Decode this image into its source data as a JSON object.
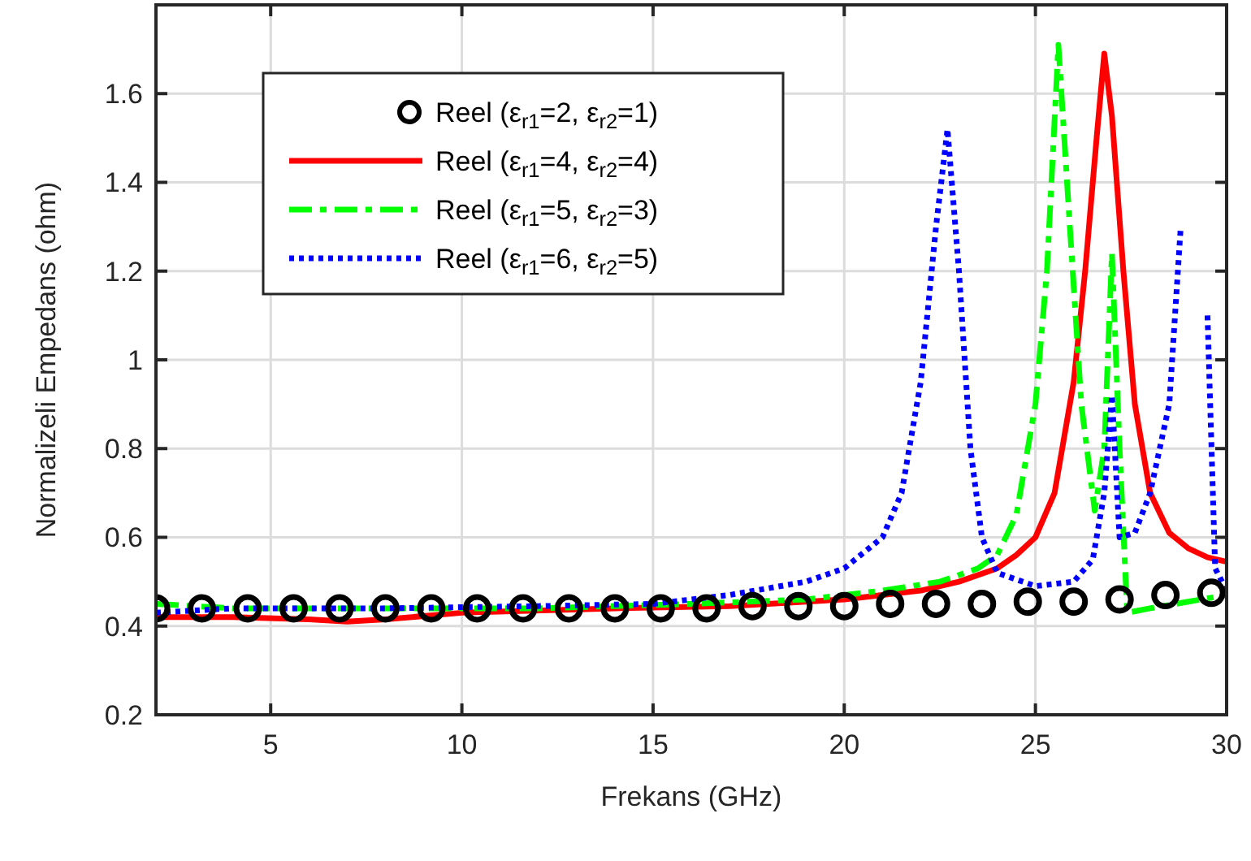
{
  "chart_data": {
    "type": "line",
    "xlabel": "Frekans (GHz)",
    "ylabel": "Normalizeli Empedans (ohm)",
    "xlim": [
      2,
      30
    ],
    "ylim": [
      0.2,
      1.8
    ],
    "xticks": [
      5,
      10,
      15,
      20,
      25,
      30
    ],
    "yticks": [
      0.2,
      0.4,
      0.6,
      0.8,
      1,
      1.2,
      1.4,
      1.6
    ],
    "grid": true,
    "legend": "top left",
    "series": [
      {
        "name": "Reel (ε$_{r1}$=2, ε$_{r2}$=1)",
        "type": "scatter",
        "marker": "circle",
        "color": "#000000",
        "x": [
          2,
          3.2,
          4.4,
          5.6,
          6.8,
          8,
          9.2,
          10.4,
          11.6,
          12.8,
          14,
          15.2,
          16.4,
          17.6,
          18.8,
          20,
          21.2,
          22.4,
          23.6,
          24.8,
          26,
          27.2,
          28.4,
          29.6
        ],
        "values": [
          0.44,
          0.44,
          0.44,
          0.44,
          0.44,
          0.44,
          0.44,
          0.44,
          0.44,
          0.44,
          0.44,
          0.44,
          0.44,
          0.445,
          0.445,
          0.445,
          0.45,
          0.45,
          0.45,
          0.455,
          0.455,
          0.46,
          0.47,
          0.475
        ]
      },
      {
        "name": "Reel (ε$_{r1}$=4, ε$_{r2}$=4)",
        "line_style": "solid",
        "color": "#ff0000",
        "x": [
          2,
          4,
          6,
          7,
          8,
          10,
          14,
          17,
          20,
          22,
          23,
          24,
          24.5,
          25,
          25.5,
          26,
          26.3,
          26.6,
          26.8,
          27,
          27.3,
          27.6,
          28,
          28.5,
          29,
          29.5,
          30
        ],
        "values": [
          0.42,
          0.42,
          0.415,
          0.41,
          0.415,
          0.43,
          0.44,
          0.445,
          0.46,
          0.48,
          0.5,
          0.53,
          0.56,
          0.6,
          0.7,
          0.95,
          1.2,
          1.5,
          1.69,
          1.55,
          1.2,
          0.9,
          0.7,
          0.61,
          0.575,
          0.555,
          0.545
        ]
      },
      {
        "name": "Reel (ε$_{r1}$=5, ε$_{r2}$=3)",
        "line_style": "dashed",
        "color": "#00ff00",
        "x": [
          2,
          4,
          8,
          12,
          16,
          19,
          21,
          22.5,
          23.5,
          24,
          24.5,
          25,
          25.3,
          25.6,
          25.9,
          26.2,
          26.55,
          26.8,
          27,
          27.2,
          27.4,
          28,
          29,
          30
        ],
        "values": [
          0.45,
          0.44,
          0.44,
          0.44,
          0.45,
          0.46,
          0.48,
          0.5,
          0.53,
          0.56,
          0.65,
          0.9,
          1.2,
          1.71,
          1.3,
          0.9,
          0.66,
          0.8,
          1.24,
          0.8,
          0.43,
          0.44,
          0.455,
          0.47
        ]
      },
      {
        "name": "Reel (ε$_{r1}$=6, ε$_{r2}$=5)",
        "line_style": "dotted",
        "color": "#0000ff",
        "x": [
          2,
          4,
          8,
          12,
          15,
          17,
          19,
          20,
          21,
          21.5,
          22,
          22.4,
          22.7,
          23,
          23.3,
          23.6,
          24,
          25,
          26,
          26.5,
          26.8,
          27,
          27.2,
          27.6,
          28,
          28.5,
          28.8,
          29.05,
          29.25,
          29.5,
          29.7,
          30
        ],
        "values": [
          0.43,
          0.44,
          0.44,
          0.445,
          0.45,
          0.47,
          0.5,
          0.53,
          0.6,
          0.7,
          0.95,
          1.3,
          1.52,
          1.2,
          0.8,
          0.6,
          0.52,
          0.49,
          0.5,
          0.55,
          0.7,
          0.92,
          0.6,
          0.61,
          0.7,
          0.9,
          1.3,
          null,
          null,
          1.1,
          0.53,
          0.48
        ]
      }
    ]
  }
}
